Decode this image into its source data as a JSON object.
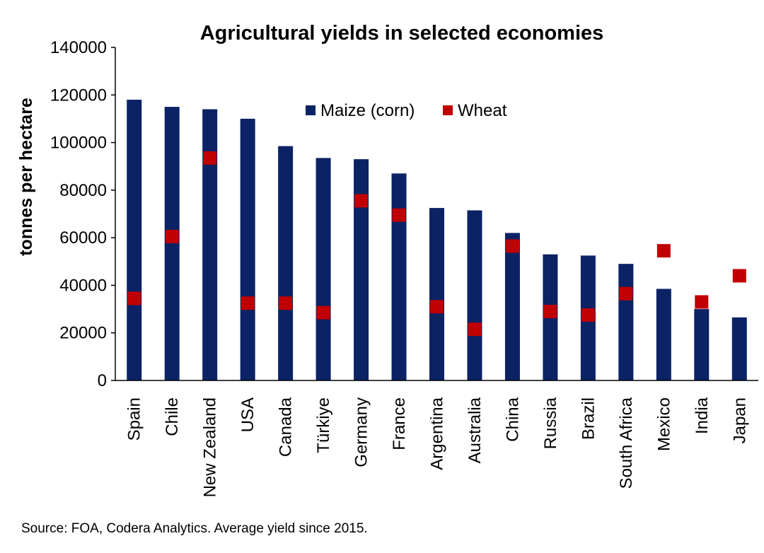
{
  "chart_data": {
    "type": "bar",
    "title": "Agricultural yields in selected economies",
    "xlabel": "",
    "ylabel": "tonnes per hectare",
    "ylim": [
      0,
      140000
    ],
    "yticks": [
      "0",
      "20000",
      "40000",
      "60000",
      "80000",
      "100000",
      "120000",
      "140000"
    ],
    "grid": false,
    "legend_position": "top-center",
    "categories": [
      "Spain",
      "Chile",
      "New Zealand",
      "USA",
      "Canada",
      "Türkiye",
      "Germany",
      "France",
      "Argentina",
      "Australia",
      "China",
      "Russia",
      "Brazil",
      "South Africa",
      "Mexico",
      "India",
      "Japan"
    ],
    "series": [
      {
        "name": "Maize (corn)",
        "kind": "bar",
        "color": "#0b2265",
        "values": [
          118000,
          115000,
          114000,
          110000,
          98500,
          93500,
          93000,
          87000,
          72500,
          71500,
          62000,
          53000,
          52500,
          49000,
          38500,
          30000,
          26500
        ]
      },
      {
        "name": "Wheat",
        "kind": "marker",
        "color": "#c00000",
        "values": [
          34500,
          60500,
          93500,
          32500,
          32500,
          28500,
          75500,
          69500,
          31000,
          21500,
          56500,
          29000,
          27500,
          36500,
          54500,
          33000,
          44000
        ]
      }
    ]
  },
  "source": "Source: FOA, Codera Analytics. Average yield since 2015."
}
